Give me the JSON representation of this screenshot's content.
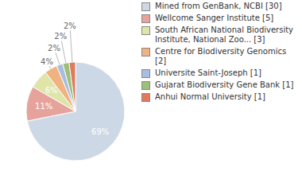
{
  "chart_data": {
    "type": "pie",
    "categories": [
      "Mined from GenBank, NCBI [30]",
      "Wellcome Sanger Institute [5]",
      "South African National Biodiversity Institute, National Zoo... [3]",
      "Centre for Biodiversity Genomics [2]",
      "Universite Saint-Joseph [1]",
      "Gujarat Biodiversity Gene Bank [1]",
      "Anhui Normal University [1]"
    ],
    "values": [
      69,
      11,
      6,
      4,
      2,
      2,
      2
    ],
    "value_labels": [
      "69%",
      "11%",
      "6%",
      "4%",
      "2%",
      "2%",
      "2%"
    ],
    "colors": [
      "#cdd8e6",
      "#e5a39c",
      "#dfe4a9",
      "#f0b27e",
      "#a9bde0",
      "#9cbf7a",
      "#e07a5f"
    ],
    "data_labels": true,
    "legend": "right"
  }
}
